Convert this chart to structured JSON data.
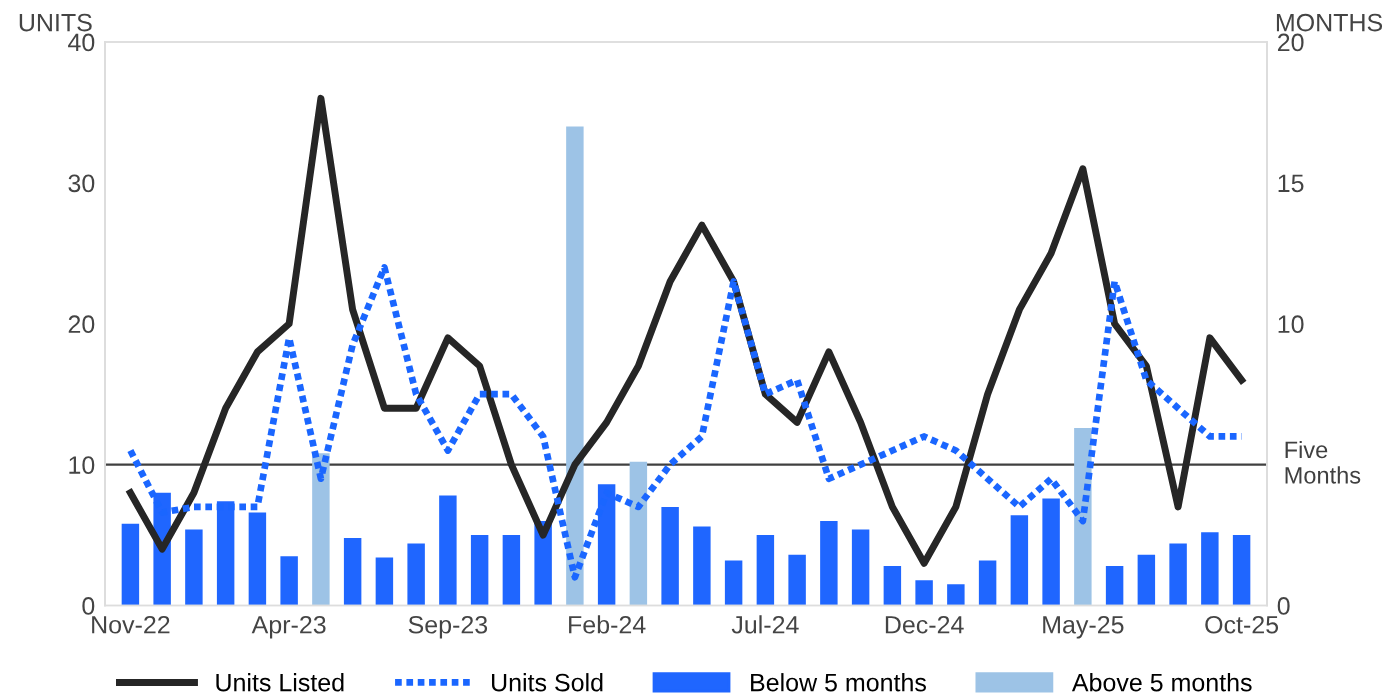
{
  "chart_data": {
    "type": "bar",
    "ylabel": "UNITS",
    "y2label": "MONTHS",
    "categories": [
      "Nov-22",
      null,
      null,
      null,
      null,
      "Apr-23",
      null,
      null,
      null,
      null,
      "Sep-23",
      null,
      null,
      null,
      null,
      "Feb-24",
      null,
      null,
      null,
      null,
      "Jul-24",
      null,
      null,
      null,
      null,
      "Dec-24",
      null,
      null,
      null,
      null,
      "May-25",
      null,
      null,
      null,
      null,
      "Oct-25"
    ],
    "series": [
      {
        "name": "Units Listed",
        "type": "line",
        "color": "#262626",
        "line_style": "solid",
        "values": [
          8,
          4,
          8,
          14,
          18,
          20,
          36,
          21,
          14,
          14,
          19,
          17,
          10,
          5,
          10,
          13,
          17,
          23,
          27,
          23,
          15,
          13,
          18,
          13,
          7,
          3,
          7,
          15,
          21,
          25,
          31,
          20,
          17,
          7,
          19,
          16
        ]
      },
      {
        "name": "Units Sold",
        "type": "line",
        "color": "#1a66ff",
        "line_style": "dotted",
        "values": [
          11,
          6.6,
          7,
          7,
          7,
          19,
          9,
          18.5,
          24,
          15,
          11,
          15,
          15,
          12,
          2,
          8,
          7,
          10,
          12,
          23,
          15,
          16,
          9,
          10,
          11,
          12,
          11,
          9,
          7,
          9,
          6,
          23,
          16,
          14,
          12,
          12
        ]
      },
      {
        "name": "Below 5 months",
        "axis": "y2",
        "color": "#1f66ff",
        "values": [
          2.9,
          4.0,
          2.7,
          3.7,
          3.3,
          1.75,
          null,
          2.4,
          1.7,
          2.2,
          3.9,
          2.5,
          2.5,
          3.0,
          null,
          4.3,
          null,
          3.5,
          2.8,
          1.6,
          2.5,
          1.8,
          3.0,
          2.7,
          1.4,
          0.9,
          0.75,
          1.6,
          3.2,
          3.8,
          null,
          1.4,
          1.8,
          2.2,
          2.6,
          2.5
        ]
      },
      {
        "name": "Above 5 months",
        "axis": "y2",
        "color": "#9dc3e6",
        "values": [
          null,
          null,
          null,
          null,
          null,
          null,
          5.4,
          null,
          null,
          null,
          null,
          null,
          null,
          null,
          17.0,
          null,
          5.1,
          null,
          null,
          null,
          null,
          null,
          null,
          null,
          null,
          null,
          null,
          null,
          null,
          null,
          6.3,
          null,
          null,
          null,
          null,
          null
        ]
      }
    ],
    "ylim": [
      0,
      40
    ],
    "yticks": [
      0,
      10,
      20,
      30,
      40
    ],
    "y2lim": [
      0,
      20
    ],
    "y2ticks": [
      0,
      10,
      15,
      20
    ],
    "ref_lines": [
      {
        "axis": "y2",
        "value": 5,
        "label": "Five\nMonths",
        "color": "#404040"
      }
    ],
    "legend": "bottom",
    "grid": false
  }
}
